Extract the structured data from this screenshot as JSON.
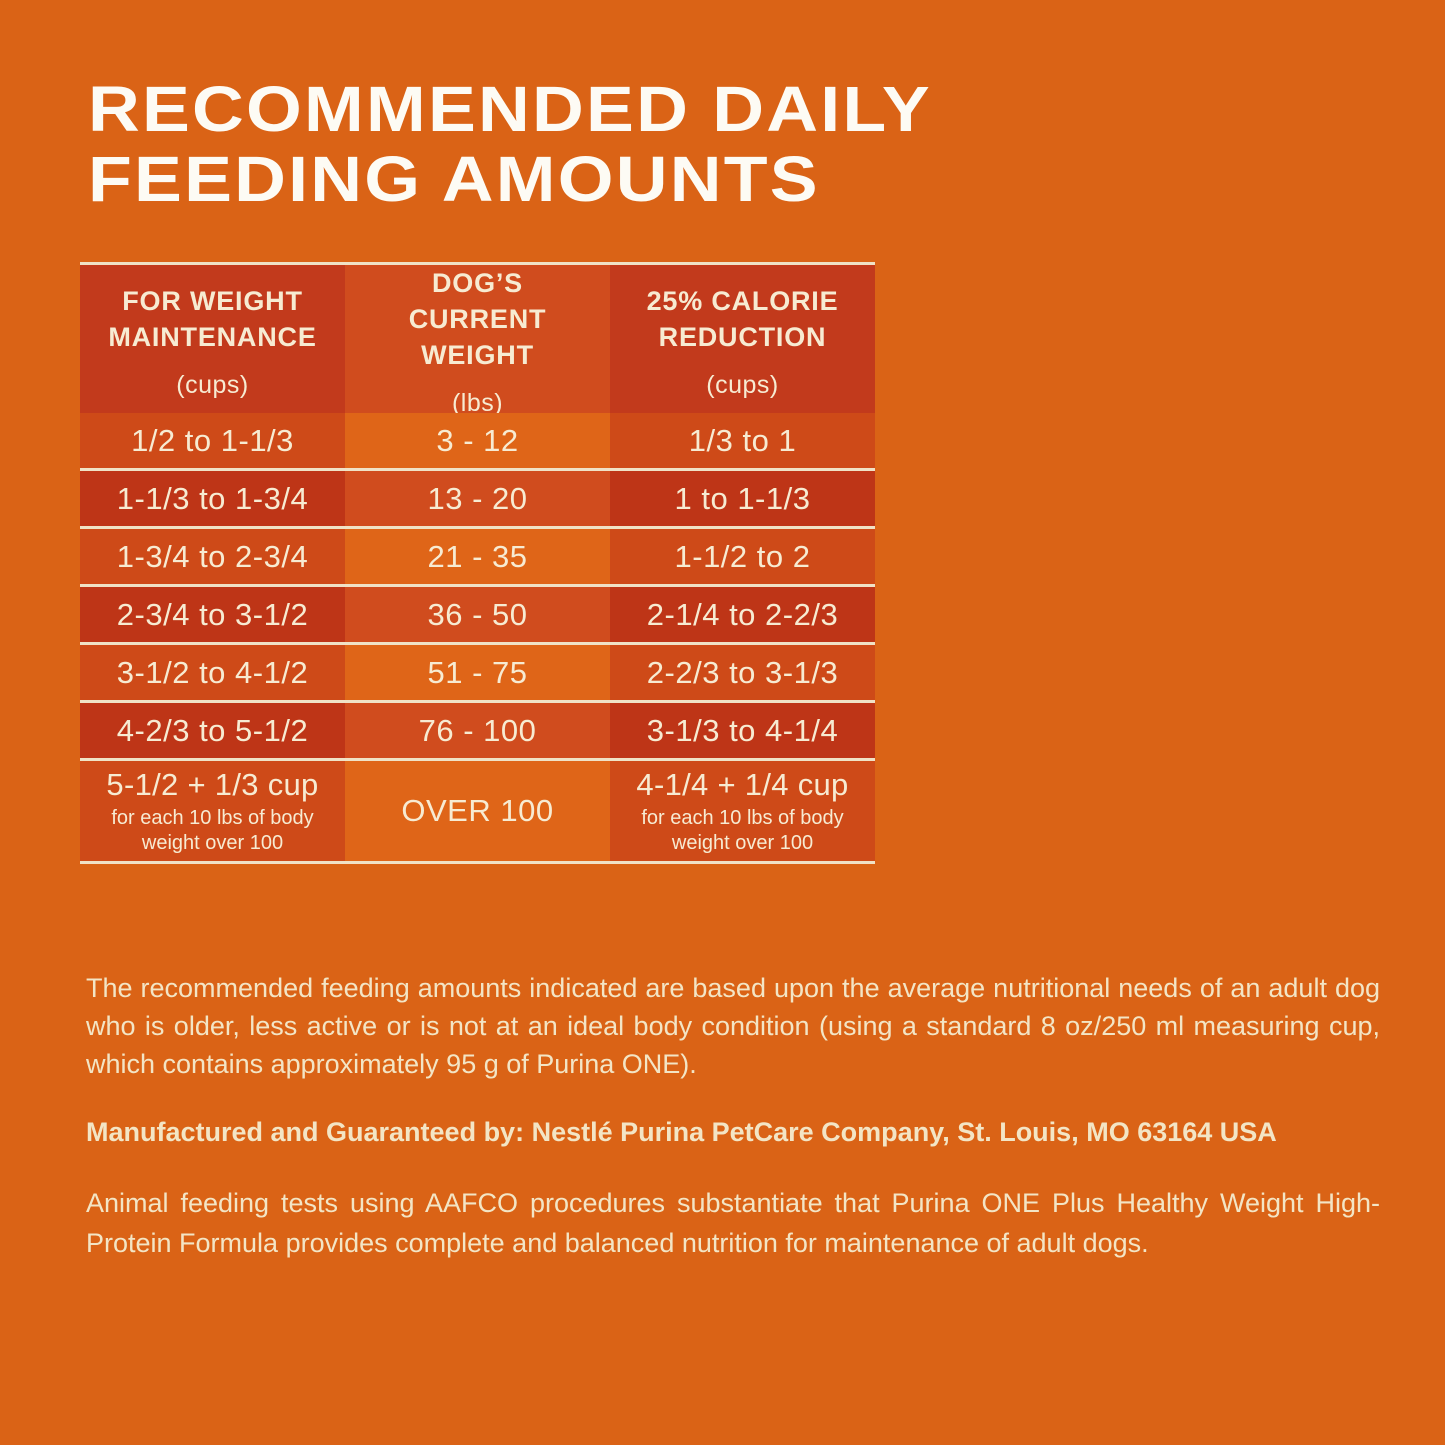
{
  "title": {
    "line1": "RECOMMENDED DAILY",
    "line2": "FEEDING AMOUNTS"
  },
  "table": {
    "columns": [
      {
        "label": "FOR WEIGHT MAINTENANCE",
        "unit": "(cups)"
      },
      {
        "label": "DOG’S CURRENT WEIGHT",
        "unit": "(lbs)"
      },
      {
        "label": "25% CALORIE REDUCTION",
        "unit": "(cups)"
      }
    ],
    "rows": [
      {
        "maintenance": "1/2 to 1-1/3",
        "weight": "3 - 12",
        "reduction": "1/3 to 1"
      },
      {
        "maintenance": "1-1/3 to 1-3/4",
        "weight": "13 - 20",
        "reduction": "1 to 1-1/3"
      },
      {
        "maintenance": "1-3/4 to 2-3/4",
        "weight": "21 - 35",
        "reduction": "1-1/2 to 2"
      },
      {
        "maintenance": "2-3/4 to 3-1/2",
        "weight": "36 - 50",
        "reduction": "2-1/4 to 2-2/3"
      },
      {
        "maintenance": "3-1/2 to 4-1/2",
        "weight": "51 - 75",
        "reduction": "2-2/3 to 3-1/3"
      },
      {
        "maintenance": "4-2/3 to 5-1/2",
        "weight": "76 - 100",
        "reduction": "3-1/3 to 4-1/4"
      }
    ],
    "last_row": {
      "maintenance_main": "5-1/2 + 1/3 cup",
      "maintenance_note": "for each 10 lbs of body weight over 100",
      "weight": "OVER 100",
      "reduction_main": "4-1/4 + 1/4 cup",
      "reduction_note": "for each 10 lbs of body weight over 100"
    }
  },
  "paragraphs": {
    "feeding_basis": "The recommended feeding amounts indicated are based upon the average nutritional needs of an adult dog who is older, less active or is not at an ideal body condition (using a standard 8 oz/250 ml measuring cup, which contains approximately 95 g of Purina ONE).",
    "manufacturer": "Manufactured and Guaranteed by: Nestlé Purina PetCare Company, St. Louis, MO 63164 USA",
    "aafco": "Animal feeding tests using AAFCO procedures substantiate that Purina ONE Plus Healthy Weight High-Protein Formula provides complete and balanced nutrition for maintenance of adult dogs."
  },
  "colors": {
    "background": "#DA6316",
    "header_side": "#C23A1C",
    "header_mid": "#D04C1E",
    "row_odd_side": "#CE4A18",
    "row_odd_mid": "#DF6518",
    "row_even_side": "#BE3517",
    "row_even_mid": "#D04C1E",
    "separator": "#F0E2C6",
    "title_text": "#FDFBF4",
    "body_text": "#F3E5C5"
  }
}
